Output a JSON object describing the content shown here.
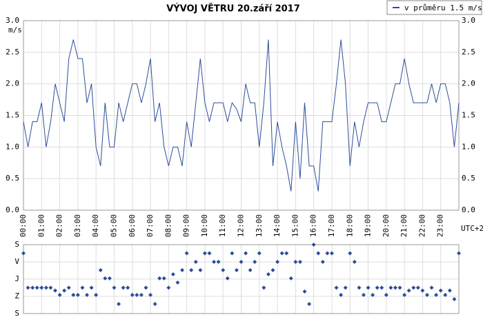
{
  "chart_data": [
    {
      "type": "line",
      "title": "VÝVOJ VĚTRU  20.září 2017",
      "y_label": "m/s",
      "x_label": "UTC+2",
      "x": [
        0,
        0.25,
        0.5,
        0.75,
        1,
        1.25,
        1.5,
        1.75,
        2,
        2.25,
        2.5,
        2.75,
        3,
        3.25,
        3.5,
        3.75,
        4,
        4.25,
        4.5,
        4.75,
        5,
        5.25,
        5.5,
        5.75,
        6,
        6.25,
        6.5,
        6.75,
        7,
        7.25,
        7.5,
        7.75,
        8,
        8.25,
        8.5,
        8.75,
        9,
        9.25,
        9.5,
        9.75,
        10,
        10.25,
        10.5,
        10.75,
        11,
        11.25,
        11.5,
        11.75,
        12,
        12.25,
        12.5,
        12.75,
        13,
        13.25,
        13.5,
        13.75,
        14,
        14.25,
        14.5,
        14.75,
        15,
        15.25,
        15.5,
        15.75,
        16,
        16.25,
        16.5,
        16.75,
        17,
        17.25,
        17.5,
        17.75,
        18,
        18.25,
        18.5,
        18.75,
        19,
        19.25,
        19.5,
        19.75,
        20,
        20.25,
        20.5,
        20.75,
        21,
        21.25,
        21.5,
        21.75,
        22,
        22.25,
        22.5,
        22.75,
        23,
        23.25,
        23.5,
        23.75,
        24
      ],
      "series": [
        {
          "name": "v průměru 1.5 m/s",
          "color": "#2b4c9b",
          "values": [
            1.4,
            1.0,
            1.4,
            1.4,
            1.7,
            1.0,
            1.4,
            2.0,
            1.7,
            1.4,
            2.4,
            2.7,
            2.4,
            2.4,
            1.7,
            2.0,
            1.0,
            0.7,
            1.7,
            1.0,
            1.0,
            1.7,
            1.4,
            1.7,
            2.0,
            2.0,
            1.7,
            2.0,
            2.4,
            1.4,
            1.7,
            1.0,
            0.7,
            1.0,
            1.0,
            0.7,
            1.4,
            1.0,
            1.7,
            2.4,
            1.7,
            1.4,
            1.7,
            1.7,
            1.7,
            1.4,
            1.7,
            1.6,
            1.4,
            2.0,
            1.7,
            1.7,
            1.0,
            1.7,
            2.7,
            0.7,
            1.4,
            1.0,
            0.7,
            0.3,
            1.4,
            0.5,
            1.7,
            0.7,
            0.7,
            0.3,
            1.4,
            1.4,
            1.4,
            2.0,
            2.7,
            2.0,
            0.7,
            1.4,
            1.0,
            1.4,
            1.7,
            1.7,
            1.7,
            1.4,
            1.4,
            1.7,
            2.0,
            2.0,
            2.4,
            2.0,
            1.7,
            1.7,
            1.7,
            1.7,
            2.0,
            1.7,
            2.0,
            2.0,
            1.7,
            1.0,
            1.7
          ]
        }
      ],
      "xlim": [
        0,
        24
      ],
      "xticks": [
        {
          "value": 0,
          "label": "00:00"
        },
        {
          "value": 1,
          "label": "01:00"
        },
        {
          "value": 2,
          "label": "02:00"
        },
        {
          "value": 3,
          "label": "03:00"
        },
        {
          "value": 4,
          "label": "04:00"
        },
        {
          "value": 5,
          "label": "05:00"
        },
        {
          "value": 6,
          "label": "06:00"
        },
        {
          "value": 7,
          "label": "07:00"
        },
        {
          "value": 8,
          "label": "08:00"
        },
        {
          "value": 9,
          "label": "09:00"
        },
        {
          "value": 10,
          "label": "10:00"
        },
        {
          "value": 11,
          "label": "11:00"
        },
        {
          "value": 12,
          "label": "12:00"
        },
        {
          "value": 13,
          "label": "13:00"
        },
        {
          "value": 14,
          "label": "14:00"
        },
        {
          "value": 15,
          "label": "15:00"
        },
        {
          "value": 16,
          "label": "16:00"
        },
        {
          "value": 17,
          "label": "17:00"
        },
        {
          "value": 18,
          "label": "18:00"
        },
        {
          "value": 19,
          "label": "19:00"
        },
        {
          "value": 20,
          "label": "20:00"
        },
        {
          "value": 21,
          "label": "21:00"
        },
        {
          "value": 22,
          "label": "22:00"
        },
        {
          "value": 23,
          "label": "23:00"
        }
      ],
      "ylim": [
        0,
        3
      ],
      "yticks": [
        {
          "value": 0,
          "label": "0.0"
        },
        0.5,
        {
          "value": 1,
          "label": "1.0"
        },
        1.5,
        {
          "value": 2,
          "label": "2.0"
        },
        2.5,
        {
          "value": 3,
          "label": "3.0"
        }
      ],
      "grid": true,
      "legend": "top-right"
    },
    {
      "type": "scatter",
      "color": "#2b4c9b",
      "x": [
        0,
        0.25,
        0.5,
        0.75,
        1,
        1.25,
        1.5,
        1.75,
        2,
        2.25,
        2.5,
        2.75,
        3,
        3.25,
        3.5,
        3.75,
        4,
        4.25,
        4.5,
        4.75,
        5,
        5.25,
        5.5,
        5.75,
        6,
        6.25,
        6.5,
        6.75,
        7,
        7.25,
        7.5,
        7.75,
        8,
        8.25,
        8.5,
        8.75,
        9,
        9.25,
        9.5,
        9.75,
        10,
        10.25,
        10.5,
        10.75,
        11,
        11.25,
        11.5,
        11.75,
        12,
        12.25,
        12.5,
        12.75,
        13,
        13.25,
        13.5,
        13.75,
        14,
        14.25,
        14.5,
        14.75,
        15,
        15.25,
        15.5,
        15.75,
        16,
        16.25,
        16.5,
        16.75,
        17,
        17.25,
        17.5,
        17.75,
        18,
        18.25,
        18.5,
        18.75,
        19,
        19.25,
        19.5,
        19.75,
        20,
        20.25,
        20.5,
        20.75,
        21,
        21.25,
        21.5,
        21.75,
        22,
        22.25,
        22.5,
        22.75,
        23,
        23.25,
        23.5,
        23.75,
        24
      ],
      "values": [
        45,
        225,
        225,
        225,
        225,
        225,
        225,
        240,
        263,
        240,
        225,
        263,
        263,
        225,
        263,
        225,
        263,
        133,
        176,
        176,
        225,
        310,
        225,
        225,
        263,
        263,
        263,
        225,
        263,
        310,
        176,
        176,
        225,
        155,
        198,
        133,
        45,
        133,
        90,
        133,
        45,
        45,
        90,
        90,
        133,
        176,
        45,
        133,
        90,
        45,
        133,
        90,
        45,
        225,
        155,
        133,
        90,
        45,
        45,
        176,
        90,
        90,
        245,
        310,
        0,
        45,
        90,
        45,
        45,
        225,
        263,
        225,
        45,
        90,
        225,
        263,
        225,
        263,
        225,
        225,
        263,
        225,
        225,
        225,
        263,
        240,
        225,
        225,
        240,
        263,
        225,
        263,
        240,
        263,
        240,
        285,
        45
      ],
      "xlim": [
        0,
        24
      ],
      "ylim": [
        360,
        0
      ],
      "yticks": [
        {
          "value": 0,
          "label": "S"
        },
        {
          "value": 90,
          "label": "V"
        },
        {
          "value": 180,
          "label": "J"
        },
        {
          "value": 270,
          "label": "Z"
        },
        {
          "value": 360,
          "label": "S"
        }
      ],
      "grid": true
    }
  ]
}
